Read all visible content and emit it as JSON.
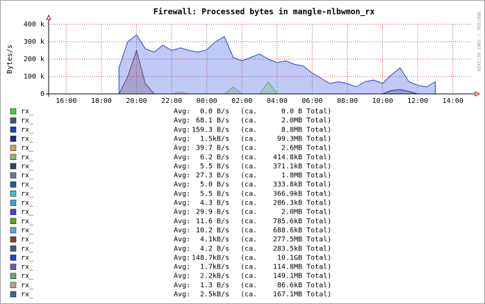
{
  "chart_data": {
    "type": "area",
    "title": "Firewall: Processed bytes in mangle-nlbwmon_rx",
    "y_label": "Bytes/s",
    "watermark": "RRDTOOL / TOBI OETIKER",
    "legend_labels": {
      "avg": "Avg:",
      "ca": "(ca.",
      "total": "Total)"
    },
    "grid": true,
    "xlim": [
      15,
      39
    ],
    "xticks": [
      {
        "value": 16,
        "label": "16:00"
      },
      {
        "value": 18,
        "label": "18:00"
      },
      {
        "value": 20,
        "label": "20:00"
      },
      {
        "value": 22,
        "label": "22:00"
      },
      {
        "value": 24,
        "label": "00:00"
      },
      {
        "value": 26,
        "label": "02:00"
      },
      {
        "value": 28,
        "label": "04:00"
      },
      {
        "value": 30,
        "label": "06:00"
      },
      {
        "value": 32,
        "label": "08:00"
      },
      {
        "value": 34,
        "label": "10:00"
      },
      {
        "value": 36,
        "label": "12:00"
      },
      {
        "value": 38,
        "label": "14:00"
      }
    ],
    "ylim": [
      0,
      400000
    ],
    "yticks": [
      0,
      {
        "value": 100000,
        "label": "100 k"
      },
      {
        "value": 200000,
        "label": "200 k"
      },
      {
        "value": 300000,
        "label": "300 k"
      },
      {
        "value": 400000,
        "label": "400 k"
      }
    ],
    "x": [
      15,
      15.5,
      16,
      16.5,
      17,
      17.5,
      18,
      18.5,
      19,
      19.5,
      20,
      20.5,
      21,
      21.5,
      22,
      22.5,
      23,
      23.5,
      24,
      24.5,
      25,
      25.5,
      26,
      26.5,
      27,
      27.5,
      28,
      28.5,
      29,
      29.5,
      30,
      30.5,
      31,
      31.5,
      32,
      32.5,
      33,
      33.5,
      34,
      34.5,
      35,
      35.5,
      36,
      36.5,
      37,
      37.5,
      38,
      38.5,
      39
    ],
    "series": [
      {
        "name": "rx_",
        "color": "#40d040",
        "avg": "0.0 B/s",
        "total": "0.0 B",
        "values": [
          null,
          null,
          null,
          null,
          null,
          null,
          null,
          null,
          0,
          0,
          0,
          0,
          0,
          0,
          0,
          0,
          0,
          0,
          0,
          0,
          0,
          0,
          0,
          0,
          0,
          0,
          0,
          0,
          0,
          0,
          0,
          0,
          0,
          0,
          0,
          0,
          0,
          0,
          0,
          0,
          0,
          0,
          0,
          0,
          0,
          null,
          null,
          null,
          null
        ]
      },
      {
        "name": "rx_",
        "color": "#405878",
        "avg": "68.1 B/s",
        "total": "2.0MB",
        "values": [
          null,
          null,
          null,
          null,
          null,
          null,
          null,
          null,
          0,
          0,
          0,
          0,
          0,
          0,
          0,
          0,
          0,
          0,
          0,
          0,
          0,
          0,
          0,
          0,
          0,
          0,
          0,
          0,
          0,
          0,
          0,
          0,
          0,
          0,
          0,
          0,
          0,
          0,
          0,
          0,
          0,
          0,
          0,
          0,
          0,
          null,
          null,
          null,
          null
        ]
      },
      {
        "name": "rx_",
        "color": "#2040c0",
        "avg": "159.3 B/s",
        "total": "8.8MB",
        "values": [
          null,
          null,
          null,
          null,
          null,
          null,
          null,
          null,
          0,
          0,
          0,
          0,
          0,
          0,
          0,
          0,
          0,
          0,
          0,
          0,
          0,
          0,
          0,
          0,
          0,
          0,
          0,
          0,
          0,
          0,
          0,
          0,
          0,
          0,
          0,
          0,
          0,
          0,
          0,
          0,
          0,
          0,
          0,
          0,
          0,
          null,
          null,
          null,
          null
        ]
      },
      {
        "name": "rx_",
        "color": "#203070",
        "avg": "1.5kB/s",
        "total": "99.3MB",
        "values": [
          null,
          null,
          null,
          null,
          null,
          null,
          null,
          null,
          0,
          0,
          0,
          0,
          0,
          0,
          0,
          0,
          0,
          0,
          0,
          0,
          0,
          0,
          0,
          0,
          0,
          0,
          0,
          0,
          0,
          0,
          0,
          0,
          0,
          0,
          0,
          0,
          0,
          0,
          0,
          20000,
          25000,
          15000,
          0,
          0,
          0,
          null,
          null,
          null,
          null
        ]
      },
      {
        "name": "rx_",
        "color": "#e0a060",
        "avg": "39.7 B/s",
        "total": "2.6MB",
        "values": [
          null,
          null,
          null,
          null,
          null,
          null,
          null,
          null,
          0,
          0,
          0,
          0,
          0,
          0,
          0,
          10000,
          0,
          0,
          0,
          0,
          0,
          0,
          0,
          0,
          0,
          0,
          0,
          0,
          0,
          0,
          0,
          0,
          0,
          0,
          0,
          0,
          0,
          0,
          0,
          0,
          0,
          0,
          0,
          0,
          0,
          null,
          null,
          null,
          null
        ]
      },
      {
        "name": "rx_",
        "color": "#80c060",
        "avg": "6.2 B/s",
        "total": "414.8kB",
        "values": [
          null,
          null,
          null,
          null,
          null,
          null,
          null,
          null,
          0,
          0,
          0,
          0,
          0,
          0,
          0,
          0,
          0,
          0,
          0,
          0,
          0,
          0,
          0,
          0,
          0,
          0,
          0,
          0,
          0,
          0,
          0,
          0,
          0,
          0,
          0,
          0,
          0,
          0,
          0,
          0,
          0,
          0,
          0,
          0,
          0,
          null,
          null,
          null,
          null
        ]
      },
      {
        "name": "rx_",
        "color": "#404060",
        "avg": "5.5 B/s",
        "total": "371.1kB",
        "values": [
          null,
          null,
          null,
          null,
          null,
          null,
          null,
          null,
          0,
          0,
          0,
          0,
          0,
          0,
          0,
          0,
          0,
          0,
          0,
          0,
          0,
          0,
          0,
          0,
          0,
          0,
          0,
          0,
          0,
          0,
          0,
          0,
          0,
          0,
          0,
          0,
          0,
          0,
          0,
          0,
          0,
          0,
          0,
          0,
          0,
          null,
          null,
          null,
          null
        ]
      },
      {
        "name": "rx_",
        "color": "#6080a0",
        "avg": "27.3 B/s",
        "total": "1.8MB",
        "values": [
          null,
          null,
          null,
          null,
          null,
          null,
          null,
          null,
          0,
          0,
          0,
          0,
          0,
          0,
          0,
          0,
          0,
          0,
          0,
          0,
          0,
          0,
          0,
          0,
          0,
          0,
          0,
          0,
          0,
          0,
          0,
          0,
          0,
          0,
          0,
          0,
          0,
          0,
          0,
          0,
          0,
          0,
          0,
          0,
          0,
          null,
          null,
          null,
          null
        ]
      },
      {
        "name": "rx_",
        "color": "#2060a0",
        "avg": "5.0 B/s",
        "total": "333.8kB",
        "values": [
          null,
          null,
          null,
          null,
          null,
          null,
          null,
          null,
          0,
          0,
          0,
          0,
          0,
          0,
          0,
          0,
          0,
          0,
          0,
          0,
          0,
          0,
          0,
          0,
          0,
          0,
          0,
          0,
          0,
          0,
          0,
          0,
          0,
          0,
          0,
          0,
          0,
          0,
          0,
          0,
          0,
          0,
          0,
          0,
          0,
          null,
          null,
          null,
          null
        ]
      },
      {
        "name": "rx_",
        "color": "#40c0c0",
        "avg": "5.5 B/s",
        "total": "366.9kB",
        "values": [
          null,
          null,
          null,
          null,
          null,
          null,
          null,
          null,
          0,
          0,
          0,
          0,
          0,
          0,
          0,
          0,
          0,
          0,
          0,
          0,
          0,
          0,
          0,
          0,
          0,
          0,
          0,
          0,
          0,
          0,
          0,
          0,
          0,
          0,
          0,
          0,
          0,
          0,
          0,
          0,
          0,
          0,
          0,
          0,
          0,
          null,
          null,
          null,
          null
        ]
      },
      {
        "name": "rx_",
        "color": "#40a0d0",
        "avg": "4.3 B/s",
        "total": "286.3kB",
        "values": [
          null,
          null,
          null,
          null,
          null,
          null,
          null,
          null,
          0,
          0,
          0,
          0,
          0,
          0,
          0,
          0,
          0,
          0,
          0,
          0,
          0,
          0,
          0,
          0,
          0,
          0,
          0,
          0,
          0,
          0,
          0,
          0,
          0,
          0,
          0,
          0,
          0,
          0,
          0,
          0,
          0,
          0,
          0,
          0,
          0,
          null,
          null,
          null,
          null
        ]
      },
      {
        "name": "rx_",
        "color": "#4040d0",
        "avg": "29.9 B/s",
        "total": "2.0MB",
        "values": [
          null,
          null,
          null,
          null,
          null,
          null,
          null,
          null,
          0,
          0,
          0,
          0,
          0,
          0,
          0,
          0,
          0,
          0,
          0,
          0,
          0,
          0,
          0,
          0,
          0,
          0,
          0,
          0,
          0,
          0,
          0,
          0,
          0,
          0,
          0,
          0,
          0,
          0,
          0,
          0,
          0,
          0,
          0,
          0,
          0,
          null,
          null,
          null,
          null
        ]
      },
      {
        "name": "rx_",
        "color": "#60a020",
        "avg": "11.6 B/s",
        "total": "785.6kB",
        "values": [
          null,
          null,
          null,
          null,
          null,
          null,
          null,
          null,
          0,
          0,
          0,
          0,
          0,
          0,
          0,
          0,
          0,
          0,
          0,
          0,
          0,
          0,
          0,
          0,
          0,
          0,
          0,
          0,
          0,
          0,
          0,
          0,
          0,
          0,
          0,
          0,
          0,
          0,
          0,
          0,
          0,
          0,
          0,
          0,
          0,
          null,
          null,
          null,
          null
        ]
      },
      {
        "name": "rx_",
        "color": "#60a0e0",
        "avg": "10.2 B/s",
        "total": "688.6kB",
        "values": [
          null,
          null,
          null,
          null,
          null,
          null,
          null,
          null,
          0,
          0,
          0,
          0,
          0,
          0,
          0,
          0,
          0,
          0,
          0,
          0,
          0,
          0,
          0,
          0,
          0,
          0,
          0,
          0,
          0,
          0,
          0,
          0,
          0,
          0,
          0,
          0,
          0,
          0,
          0,
          0,
          0,
          0,
          0,
          0,
          0,
          null,
          null,
          null,
          null
        ]
      },
      {
        "name": "rx_",
        "color": "#804040",
        "avg": "4.1kB/s",
        "total": "277.5MB",
        "values": [
          null,
          null,
          null,
          null,
          null,
          null,
          null,
          null,
          0,
          100000,
          250000,
          60000,
          0,
          0,
          0,
          0,
          0,
          0,
          0,
          0,
          0,
          0,
          0,
          0,
          0,
          0,
          0,
          0,
          0,
          0,
          0,
          0,
          0,
          0,
          0,
          0,
          0,
          0,
          0,
          0,
          0,
          0,
          0,
          0,
          0,
          null,
          null,
          null,
          null
        ]
      },
      {
        "name": "rx_",
        "color": "#406080",
        "avg": "4.2 B/s",
        "total": "283.5kB",
        "values": [
          null,
          null,
          null,
          null,
          null,
          null,
          null,
          null,
          0,
          0,
          0,
          0,
          0,
          0,
          0,
          0,
          0,
          0,
          0,
          0,
          0,
          0,
          0,
          0,
          0,
          0,
          0,
          0,
          0,
          0,
          0,
          0,
          0,
          0,
          0,
          0,
          0,
          0,
          0,
          0,
          0,
          0,
          0,
          0,
          0,
          null,
          null,
          null,
          null
        ]
      },
      {
        "name": "rx_",
        "color": "#2040e0",
        "avg": "148.7kB/s",
        "total": "10.1GB",
        "values": [
          null,
          null,
          null,
          null,
          null,
          null,
          null,
          null,
          150000,
          300000,
          340000,
          260000,
          240000,
          280000,
          250000,
          265000,
          250000,
          240000,
          255000,
          300000,
          330000,
          210000,
          190000,
          210000,
          230000,
          200000,
          180000,
          190000,
          170000,
          160000,
          120000,
          90000,
          60000,
          70000,
          60000,
          40000,
          70000,
          80000,
          60000,
          110000,
          150000,
          70000,
          50000,
          40000,
          70000,
          null,
          null,
          null,
          null
        ]
      },
      {
        "name": "rx_",
        "color": "#6060a0",
        "avg": "1.7kB/s",
        "total": "114.8MB",
        "values": [
          null,
          null,
          null,
          null,
          null,
          null,
          null,
          null,
          0,
          0,
          0,
          0,
          0,
          0,
          0,
          0,
          0,
          0,
          0,
          0,
          0,
          0,
          0,
          0,
          0,
          0,
          0,
          0,
          0,
          0,
          0,
          0,
          0,
          0,
          0,
          0,
          0,
          0,
          0,
          0,
          0,
          0,
          0,
          0,
          0,
          null,
          null,
          null,
          null
        ]
      },
      {
        "name": "rx_",
        "color": "#60b060",
        "avg": "2.2kB/s",
        "total": "149.1MB",
        "values": [
          null,
          null,
          null,
          null,
          null,
          null,
          null,
          null,
          0,
          0,
          0,
          0,
          0,
          0,
          0,
          0,
          0,
          0,
          0,
          0,
          0,
          40000,
          0,
          0,
          0,
          70000,
          0,
          0,
          0,
          0,
          0,
          0,
          0,
          0,
          0,
          0,
          0,
          0,
          0,
          0,
          0,
          0,
          0,
          0,
          0,
          null,
          null,
          null,
          null
        ]
      },
      {
        "name": "rx_",
        "color": "#c0a080",
        "avg": "1.3 B/s",
        "total": "86.6kB",
        "values": [
          null,
          null,
          null,
          null,
          null,
          null,
          null,
          null,
          0,
          0,
          0,
          0,
          0,
          0,
          0,
          0,
          0,
          0,
          0,
          0,
          0,
          0,
          0,
          0,
          0,
          0,
          0,
          0,
          0,
          0,
          0,
          0,
          0,
          0,
          0,
          0,
          0,
          0,
          0,
          0,
          0,
          0,
          0,
          0,
          0,
          null,
          null,
          null,
          null
        ]
      },
      {
        "name": "rx_",
        "color": "#4060a0",
        "avg": "2.5kB/s",
        "total": "167.1MB",
        "values": [
          null,
          null,
          null,
          null,
          null,
          null,
          null,
          null,
          0,
          0,
          0,
          0,
          0,
          0,
          0,
          0,
          0,
          0,
          0,
          0,
          0,
          0,
          0,
          0,
          0,
          0,
          0,
          0,
          0,
          0,
          0,
          0,
          0,
          0,
          0,
          0,
          0,
          0,
          0,
          0,
          0,
          0,
          0,
          0,
          0,
          null,
          null,
          null,
          null
        ]
      }
    ]
  }
}
